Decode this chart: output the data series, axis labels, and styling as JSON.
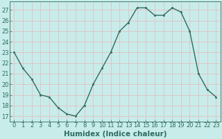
{
  "x": [
    0,
    1,
    2,
    3,
    4,
    5,
    6,
    7,
    8,
    9,
    10,
    11,
    12,
    13,
    14,
    15,
    16,
    17,
    18,
    19,
    20,
    21,
    22,
    23
  ],
  "y": [
    23.0,
    21.5,
    20.5,
    19.0,
    18.8,
    17.8,
    17.2,
    17.0,
    18.0,
    20.0,
    21.5,
    23.0,
    25.0,
    25.8,
    27.2,
    27.2,
    26.5,
    26.5,
    27.2,
    26.8,
    25.0,
    21.0,
    19.5,
    18.8
  ],
  "line_color": "#2d6b5e",
  "marker_color": "#2d6b5e",
  "bg_color": "#c8ecea",
  "grid_color": "#e8b8b8",
  "xlabel": "Humidex (Indice chaleur)",
  "xlabel_color": "#2d6b5e",
  "tick_color": "#2d6b5e",
  "ylim": [
    16.5,
    27.8
  ],
  "yticks": [
    17,
    18,
    19,
    20,
    21,
    22,
    23,
    24,
    25,
    26,
    27
  ],
  "xticks": [
    0,
    1,
    2,
    3,
    4,
    5,
    6,
    7,
    8,
    9,
    10,
    11,
    12,
    13,
    14,
    15,
    16,
    17,
    18,
    19,
    20,
    21,
    22,
    23
  ],
  "xlabel_fontsize": 7.5,
  "tick_fontsize": 6.0
}
